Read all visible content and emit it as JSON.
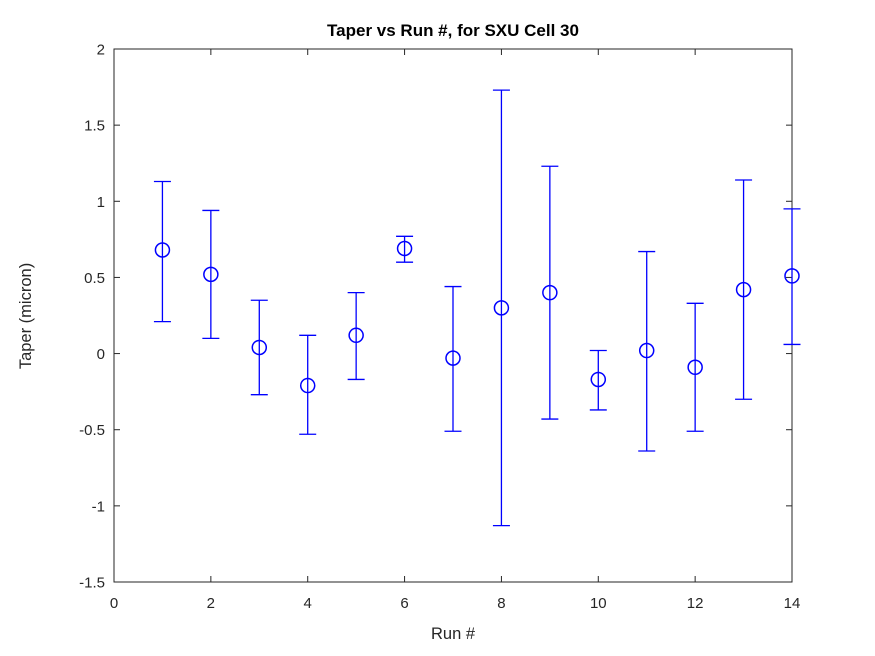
{
  "chart_data": {
    "type": "scatter",
    "subtype": "errorbar",
    "title": "Taper vs Run #, for SXU Cell 30",
    "xlabel": "Run #",
    "ylabel": "Taper (micron)",
    "xlim": [
      0,
      14
    ],
    "ylim": [
      -1.5,
      2
    ],
    "xticks": [
      0,
      2,
      4,
      6,
      8,
      10,
      12,
      14
    ],
    "yticks": [
      -1.5,
      -1,
      -0.5,
      0,
      0.5,
      1,
      1.5,
      2
    ],
    "grid": false,
    "legend": null,
    "marker": "open-circle",
    "series_color": "#0000ff",
    "axis_color": "#262626",
    "x": [
      1,
      2,
      3,
      4,
      5,
      6,
      7,
      8,
      9,
      10,
      11,
      12,
      13,
      14
    ],
    "y": [
      0.68,
      0.52,
      0.04,
      -0.21,
      0.12,
      0.69,
      -0.03,
      0.3,
      0.4,
      -0.17,
      0.02,
      -0.09,
      0.42,
      0.51
    ],
    "err_low": [
      0.21,
      0.1,
      -0.27,
      -0.53,
      -0.17,
      0.6,
      -0.51,
      -1.13,
      -0.43,
      -0.37,
      -0.64,
      -0.51,
      -0.3,
      0.06
    ],
    "err_high": [
      1.13,
      0.94,
      0.35,
      0.12,
      0.4,
      0.77,
      0.44,
      1.73,
      1.23,
      0.02,
      0.67,
      0.33,
      1.14,
      0.95
    ]
  }
}
